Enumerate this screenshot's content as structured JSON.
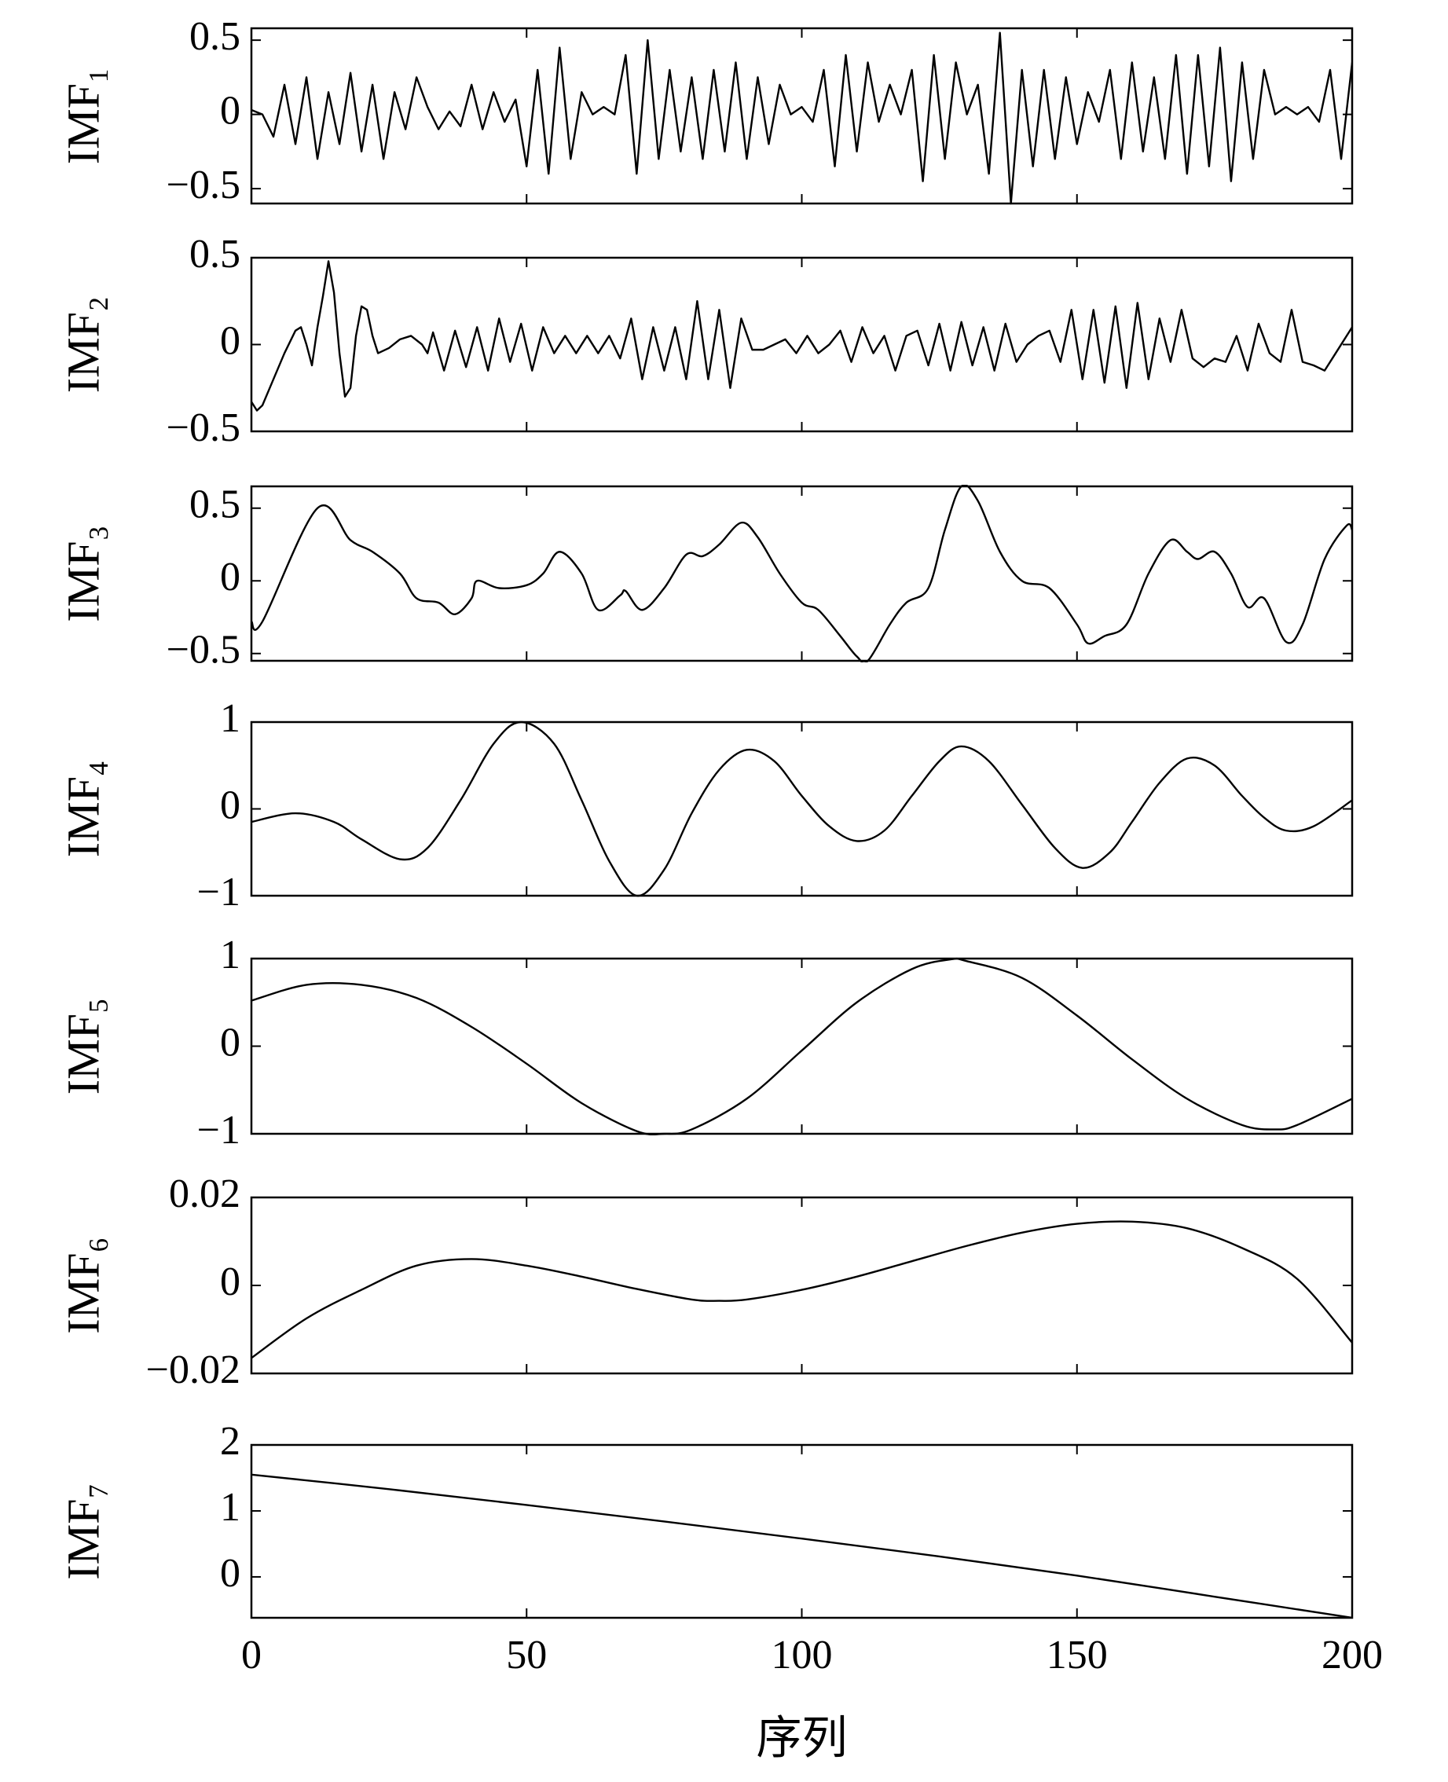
{
  "chart_data": [
    {
      "type": "line",
      "ylabel": "IMF₁",
      "xlim": [
        0,
        200
      ],
      "ylim": [
        -0.6,
        0.58
      ],
      "yticks": [
        {
          "value": -0.5,
          "label": "−0.5"
        },
        0,
        0.5
      ],
      "color": "#000000",
      "x": [
        0,
        2,
        4,
        6,
        8,
        10,
        12,
        14,
        16,
        18,
        20,
        22,
        24,
        26,
        28,
        30,
        32,
        34,
        36,
        38,
        40,
        42,
        44,
        46,
        48,
        50,
        52,
        54,
        56,
        58,
        60,
        62,
        64,
        66,
        68,
        70,
        72,
        74,
        76,
        78,
        80,
        82,
        84,
        86,
        88,
        90,
        92,
        94,
        96,
        98,
        100,
        102,
        104,
        106,
        108,
        110,
        112,
        114,
        116,
        118,
        120,
        122,
        124,
        126,
        128,
        130,
        132,
        134,
        136,
        138,
        140,
        142,
        144,
        146,
        148,
        150,
        152,
        154,
        156,
        158,
        160,
        162,
        164,
        166,
        168,
        170,
        172,
        174,
        176,
        178,
        180,
        182,
        184,
        186,
        188,
        190,
        192,
        194,
        196,
        198,
        200
      ],
      "values": [
        0.03,
        0.0,
        -0.15,
        0.2,
        -0.2,
        0.25,
        -0.3,
        0.15,
        -0.2,
        0.28,
        -0.25,
        0.2,
        -0.3,
        0.15,
        -0.1,
        0.25,
        0.05,
        -0.1,
        0.02,
        -0.08,
        0.2,
        -0.1,
        0.15,
        -0.05,
        0.1,
        -0.35,
        0.3,
        -0.4,
        0.45,
        -0.3,
        0.15,
        0.0,
        0.05,
        0.0,
        0.4,
        -0.4,
        0.5,
        -0.3,
        0.3,
        -0.25,
        0.25,
        -0.3,
        0.3,
        -0.25,
        0.35,
        -0.3,
        0.25,
        -0.2,
        0.2,
        0.0,
        0.05,
        -0.05,
        0.3,
        -0.35,
        0.4,
        -0.25,
        0.35,
        -0.05,
        0.2,
        0.0,
        0.3,
        -0.45,
        0.4,
        -0.3,
        0.35,
        0.0,
        0.2,
        -0.4,
        0.55,
        -0.6,
        0.3,
        -0.35,
        0.3,
        -0.3,
        0.25,
        -0.2,
        0.15,
        -0.05,
        0.3,
        -0.3,
        0.35,
        -0.25,
        0.25,
        -0.3,
        0.4,
        -0.4,
        0.4,
        -0.35,
        0.45,
        -0.45,
        0.35,
        -0.3,
        0.3,
        0.0,
        0.05,
        0.0,
        0.05,
        -0.05,
        0.3,
        -0.3,
        0.35
      ]
    },
    {
      "type": "line",
      "ylabel": "IMF₂",
      "xlim": [
        0,
        200
      ],
      "ylim": [
        -0.5,
        0.5
      ],
      "yticks": [
        {
          "value": -0.5,
          "label": "−0.5"
        },
        0,
        0.5
      ],
      "color": "#000000",
      "x": [
        0,
        1,
        2,
        4,
        6,
        8,
        9,
        10,
        11,
        12,
        13,
        14,
        15,
        16,
        17,
        18,
        19,
        20,
        21,
        22,
        23,
        25,
        27,
        29,
        31,
        32,
        33,
        35,
        37,
        39,
        41,
        43,
        45,
        47,
        49,
        51,
        53,
        55,
        57,
        59,
        61,
        63,
        65,
        67,
        69,
        71,
        73,
        75,
        77,
        79,
        81,
        83,
        85,
        87,
        89,
        91,
        93,
        95,
        97,
        99,
        101,
        103,
        105,
        107,
        109,
        111,
        113,
        115,
        117,
        119,
        121,
        123,
        125,
        127,
        129,
        131,
        133,
        135,
        137,
        139,
        141,
        143,
        145,
        147,
        149,
        151,
        153,
        155,
        157,
        159,
        161,
        163,
        165,
        167,
        169,
        171,
        173,
        175,
        177,
        179,
        181,
        183,
        185,
        187,
        189,
        191,
        193,
        195,
        197,
        200
      ],
      "values": [
        -0.33,
        -0.38,
        -0.35,
        -0.2,
        -0.05,
        0.08,
        0.1,
        0.0,
        -0.12,
        0.1,
        0.28,
        0.48,
        0.3,
        -0.05,
        -0.3,
        -0.25,
        0.05,
        0.22,
        0.2,
        0.05,
        -0.05,
        -0.02,
        0.03,
        0.05,
        0.0,
        -0.05,
        0.07,
        -0.15,
        0.08,
        -0.13,
        0.1,
        -0.15,
        0.15,
        -0.1,
        0.12,
        -0.15,
        0.1,
        -0.05,
        0.05,
        -0.05,
        0.05,
        -0.05,
        0.05,
        -0.08,
        0.15,
        -0.2,
        0.1,
        -0.15,
        0.1,
        -0.2,
        0.25,
        -0.2,
        0.2,
        -0.25,
        0.15,
        -0.03,
        -0.03,
        0.0,
        0.03,
        -0.05,
        0.05,
        -0.05,
        0.0,
        0.08,
        -0.1,
        0.1,
        -0.05,
        0.05,
        -0.15,
        0.05,
        0.08,
        -0.12,
        0.12,
        -0.15,
        0.13,
        -0.12,
        0.1,
        -0.15,
        0.12,
        -0.1,
        0.0,
        0.05,
        0.08,
        -0.1,
        0.2,
        -0.2,
        0.2,
        -0.22,
        0.22,
        -0.25,
        0.24,
        -0.2,
        0.15,
        -0.1,
        0.2,
        -0.08,
        -0.13,
        -0.08,
        -0.1,
        0.05,
        -0.15,
        0.12,
        -0.05,
        -0.1,
        0.2,
        -0.1,
        -0.12,
        -0.15,
        -0.05,
        0.1
      ]
    },
    {
      "type": "line",
      "ylabel": "IMF₃",
      "xlim": [
        0,
        200
      ],
      "ylim": [
        -0.55,
        0.65
      ],
      "yticks": [
        {
          "value": -0.5,
          "label": "−0.5"
        },
        0,
        0.5
      ],
      "color": "#000000",
      "smooth": true,
      "x": [
        0,
        2,
        12,
        18,
        22,
        27,
        30,
        34,
        37,
        40,
        41,
        45,
        50,
        53,
        56,
        60,
        63,
        67,
        68,
        71,
        75,
        79,
        82,
        85,
        89,
        92,
        96,
        100,
        103,
        107,
        110,
        112,
        116,
        119,
        123,
        126,
        129,
        132,
        136,
        140,
        145,
        150,
        152,
        155,
        159,
        163,
        167,
        170,
        172,
        175,
        178,
        181,
        184,
        188,
        191,
        195,
        199,
        200
      ],
      "values": [
        -0.28,
        -0.28,
        0.5,
        0.28,
        0.2,
        0.05,
        -0.12,
        -0.15,
        -0.23,
        -0.12,
        0.0,
        -0.05,
        -0.03,
        0.05,
        0.2,
        0.05,
        -0.2,
        -0.1,
        -0.07,
        -0.2,
        -0.05,
        0.18,
        0.17,
        0.25,
        0.4,
        0.3,
        0.05,
        -0.15,
        -0.2,
        -0.38,
        -0.52,
        -0.55,
        -0.3,
        -0.15,
        -0.05,
        0.35,
        0.65,
        0.55,
        0.2,
        0.0,
        -0.05,
        -0.3,
        -0.43,
        -0.38,
        -0.3,
        0.05,
        0.28,
        0.2,
        0.15,
        0.2,
        0.05,
        -0.18,
        -0.12,
        -0.42,
        -0.3,
        0.15,
        0.38,
        0.35
      ]
    },
    {
      "type": "line",
      "ylabel": "IMF₄",
      "xlim": [
        0,
        200
      ],
      "ylim": [
        -1,
        1
      ],
      "yticks": [
        {
          "value": -1,
          "label": "−1"
        },
        0,
        1
      ],
      "color": "#000000",
      "smooth": true,
      "x": [
        0,
        8,
        15,
        20,
        27,
        32,
        38,
        44,
        49,
        55,
        60,
        65,
        70,
        75,
        80,
        85,
        90,
        95,
        100,
        105,
        110,
        115,
        120,
        125,
        129,
        134,
        140,
        146,
        151,
        156,
        160,
        165,
        170,
        175,
        180,
        184,
        188,
        193,
        200
      ],
      "values": [
        -0.15,
        -0.05,
        -0.15,
        -0.35,
        -0.58,
        -0.45,
        0.1,
        0.75,
        1.0,
        0.75,
        0.1,
        -0.6,
        -1.0,
        -0.7,
        -0.05,
        0.45,
        0.68,
        0.55,
        0.15,
        -0.2,
        -0.37,
        -0.25,
        0.15,
        0.55,
        0.72,
        0.55,
        0.05,
        -0.45,
        -0.68,
        -0.5,
        -0.15,
        0.3,
        0.58,
        0.5,
        0.15,
        -0.1,
        -0.25,
        -0.2,
        0.1
      ]
    },
    {
      "type": "line",
      "ylabel": "IMF₅",
      "xlim": [
        0,
        200
      ],
      "ylim": [
        -1,
        1
      ],
      "yticks": [
        {
          "value": -1,
          "label": "−1"
        },
        0,
        1
      ],
      "color": "#000000",
      "smooth": true,
      "x": [
        0,
        10,
        20,
        30,
        40,
        50,
        60,
        70,
        75,
        80,
        90,
        100,
        110,
        120,
        127,
        130,
        140,
        150,
        160,
        170,
        180,
        186,
        190,
        200
      ],
      "values": [
        0.52,
        0.7,
        0.7,
        0.55,
        0.22,
        -0.2,
        -0.65,
        -0.97,
        -1.0,
        -0.95,
        -0.6,
        -0.05,
        0.5,
        0.88,
        0.99,
        0.97,
        0.78,
        0.35,
        -0.15,
        -0.6,
        -0.9,
        -0.95,
        -0.9,
        -0.6
      ]
    },
    {
      "type": "line",
      "ylabel": "IMF₆",
      "xlim": [
        0,
        200
      ],
      "ylim": [
        -0.02,
        0.02
      ],
      "yticks": [
        {
          "value": -0.02,
          "label": "−0.02"
        },
        0,
        0.02
      ],
      "color": "#000000",
      "smooth": true,
      "x": [
        0,
        10,
        20,
        30,
        40,
        50,
        60,
        70,
        80,
        85,
        90,
        100,
        110,
        120,
        130,
        140,
        150,
        160,
        170,
        180,
        190,
        200
      ],
      "values": [
        -0.0165,
        -0.0075,
        -0.001,
        0.0045,
        0.006,
        0.0045,
        0.002,
        -0.0008,
        -0.0032,
        -0.0035,
        -0.0032,
        -0.001,
        0.002,
        0.0055,
        0.009,
        0.012,
        0.014,
        0.0145,
        0.013,
        0.0085,
        0.0015,
        -0.013
      ]
    },
    {
      "type": "line",
      "ylabel": "IMF₇",
      "xlabel": "序列",
      "xlim": [
        0,
        200
      ],
      "xticks": [
        0,
        50,
        100,
        150,
        200
      ],
      "ylim": [
        -0.62,
        2
      ],
      "yticks": [
        0,
        1,
        2
      ],
      "color": "#000000",
      "smooth": true,
      "x": [
        0,
        25,
        50,
        75,
        100,
        125,
        150,
        175,
        200
      ],
      "values": [
        1.55,
        1.33,
        1.09,
        0.84,
        0.58,
        0.31,
        0.02,
        -0.3,
        -0.62
      ]
    }
  ]
}
